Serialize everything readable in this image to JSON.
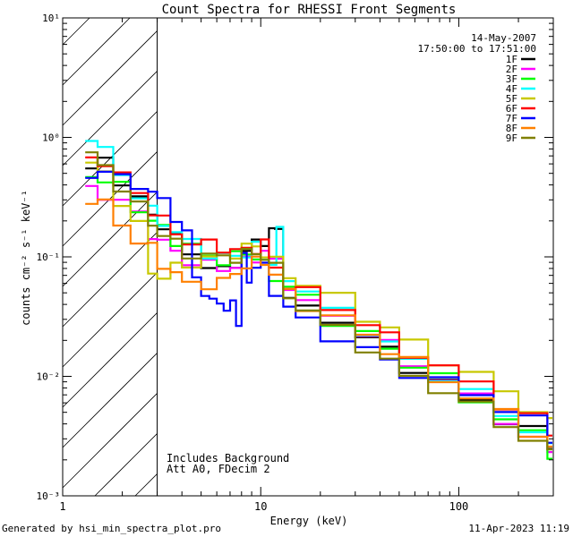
{
  "chart_data": {
    "type": "line",
    "title": "Count Spectra for RHESSI Front Segments",
    "xlabel": "Energy (keV)",
    "ylabel": "counts cm⁻² s⁻¹ keV⁻¹",
    "xscale": "log",
    "yscale": "log",
    "xlim": [
      1,
      300
    ],
    "ylim": [
      0.001,
      10
    ],
    "x_ticks": [
      {
        "value": 1,
        "label": "1"
      },
      {
        "value": 10,
        "label": "10"
      },
      {
        "value": 100,
        "label": "100"
      }
    ],
    "y_ticks": [
      {
        "value": 0.001,
        "label": "10⁻³"
      },
      {
        "value": 0.01,
        "label": "10⁻²"
      },
      {
        "value": 0.1,
        "label": "10⁻¹"
      },
      {
        "value": 1,
        "label": "10⁰"
      },
      {
        "value": 10,
        "label": "10¹"
      }
    ],
    "date": "14-May-2007",
    "time_range": "17:50:00 to 17:51:00",
    "excluded_region_max_kev": 3,
    "annotations": [
      "Includes Background",
      "Att A0, FDecim 2"
    ],
    "series": [
      {
        "name": "1F",
        "color": "#000000",
        "points": [
          [
            1.3,
            0.55
          ],
          [
            1.5,
            0.62
          ],
          [
            1.8,
            0.45
          ],
          [
            2.2,
            0.3
          ],
          [
            2.7,
            0.22
          ],
          [
            3.0,
            0.19
          ],
          [
            3.5,
            0.14
          ],
          [
            4.0,
            0.11
          ],
          [
            5.0,
            0.085
          ],
          [
            6.0,
            0.075
          ],
          [
            7.0,
            0.09
          ],
          [
            8.0,
            0.11
          ],
          [
            9.0,
            0.13
          ],
          [
            10.0,
            0.14
          ],
          [
            11.0,
            0.16
          ],
          [
            11.8,
            0.17
          ],
          [
            13.0,
            0.05
          ],
          [
            15.0,
            0.035
          ],
          [
            20.0,
            0.03
          ],
          [
            30.0,
            0.022
          ],
          [
            40.0,
            0.016
          ],
          [
            50.0,
            0.012
          ],
          [
            70.0,
            0.009
          ],
          [
            100.0,
            0.006
          ],
          [
            150.0,
            0.0045
          ],
          [
            200.0,
            0.0035
          ],
          [
            280.0,
            0.0025
          ]
        ]
      },
      {
        "name": "2F",
        "color": "#ff00ff",
        "points": [
          [
            1.3,
            0.35
          ],
          [
            1.5,
            0.33
          ],
          [
            1.8,
            0.3
          ],
          [
            2.2,
            0.22
          ],
          [
            2.7,
            0.16
          ],
          [
            3.0,
            0.13
          ],
          [
            3.5,
            0.11
          ],
          [
            4.0,
            0.095
          ],
          [
            5.0,
            0.085
          ],
          [
            6.0,
            0.08
          ],
          [
            7.0,
            0.085
          ],
          [
            8.0,
            0.09
          ],
          [
            9.0,
            0.1
          ],
          [
            10.0,
            0.11
          ],
          [
            11.0,
            0.09
          ],
          [
            13.0,
            0.06
          ],
          [
            15.0,
            0.04
          ],
          [
            20.0,
            0.032
          ],
          [
            30.0,
            0.024
          ],
          [
            40.0,
            0.018
          ],
          [
            50.0,
            0.013
          ],
          [
            70.0,
            0.0095
          ],
          [
            100.0,
            0.0065
          ],
          [
            150.0,
            0.0045
          ],
          [
            200.0,
            0.003
          ],
          [
            280.0,
            0.0022
          ]
        ]
      },
      {
        "name": "3F",
        "color": "#00ff00",
        "points": [
          [
            1.3,
            0.48
          ],
          [
            1.5,
            0.45
          ],
          [
            1.8,
            0.38
          ],
          [
            2.2,
            0.26
          ],
          [
            2.7,
            0.2
          ],
          [
            3.0,
            0.17
          ],
          [
            3.5,
            0.14
          ],
          [
            4.0,
            0.12
          ],
          [
            5.0,
            0.1
          ],
          [
            6.0,
            0.095
          ],
          [
            7.0,
            0.1
          ],
          [
            8.0,
            0.11
          ],
          [
            9.0,
            0.1
          ],
          [
            10.0,
            0.085
          ],
          [
            11.0,
            0.07
          ],
          [
            13.0,
            0.055
          ],
          [
            15.0,
            0.045
          ],
          [
            20.0,
            0.03
          ],
          [
            30.0,
            0.022
          ],
          [
            40.0,
            0.017
          ],
          [
            50.0,
            0.013
          ],
          [
            70.0,
            0.0095
          ],
          [
            100.0,
            0.0065
          ],
          [
            150.0,
            0.0045
          ],
          [
            200.0,
            0.0032
          ],
          [
            280.0,
            0.0023
          ]
        ]
      },
      {
        "name": "4F",
        "color": "#00ffff",
        "points": [
          [
            1.3,
            1.05
          ],
          [
            1.5,
            0.75
          ],
          [
            1.8,
            0.5
          ],
          [
            2.2,
            0.33
          ],
          [
            2.7,
            0.24
          ],
          [
            3.0,
            0.2
          ],
          [
            3.5,
            0.16
          ],
          [
            4.0,
            0.13
          ],
          [
            5.0,
            0.11
          ],
          [
            6.0,
            0.1
          ],
          [
            7.0,
            0.1
          ],
          [
            8.0,
            0.11
          ],
          [
            9.0,
            0.12
          ],
          [
            10.0,
            0.1
          ],
          [
            11.0,
            0.09
          ],
          [
            12.0,
            0.16
          ],
          [
            13.0,
            0.07
          ],
          [
            15.0,
            0.05
          ],
          [
            20.0,
            0.035
          ],
          [
            30.0,
            0.025
          ],
          [
            40.0,
            0.018
          ],
          [
            50.0,
            0.014
          ],
          [
            70.0,
            0.01
          ],
          [
            100.0,
            0.007
          ],
          [
            150.0,
            0.005
          ],
          [
            200.0,
            0.0035
          ],
          [
            280.0,
            0.0025
          ]
        ]
      },
      {
        "name": "5F",
        "color": "#c8c800",
        "points": [
          [
            1.3,
            0.58
          ],
          [
            1.5,
            0.5
          ],
          [
            1.8,
            0.3
          ],
          [
            2.2,
            0.18
          ],
          [
            2.7,
            0.075
          ],
          [
            3.0,
            0.07
          ],
          [
            3.5,
            0.08
          ],
          [
            4.0,
            0.09
          ],
          [
            5.0,
            0.1
          ],
          [
            6.0,
            0.1
          ],
          [
            7.0,
            0.11
          ],
          [
            8.0,
            0.12
          ],
          [
            9.0,
            0.12
          ],
          [
            10.0,
            0.11
          ],
          [
            11.0,
            0.09
          ],
          [
            13.0,
            0.07
          ],
          [
            15.0,
            0.06
          ],
          [
            20.0,
            0.045
          ],
          [
            30.0,
            0.032
          ],
          [
            40.0,
            0.025
          ],
          [
            50.0,
            0.019
          ],
          [
            70.0,
            0.014
          ],
          [
            100.0,
            0.01
          ],
          [
            150.0,
            0.0075
          ],
          [
            200.0,
            0.0055
          ],
          [
            280.0,
            0.004
          ]
        ]
      },
      {
        "name": "6F",
        "color": "#ff0000",
        "points": [
          [
            1.3,
            0.62
          ],
          [
            1.5,
            0.65
          ],
          [
            1.8,
            0.48
          ],
          [
            2.2,
            0.33
          ],
          [
            2.7,
            0.25
          ],
          [
            3.0,
            0.2
          ],
          [
            3.5,
            0.16
          ],
          [
            4.0,
            0.135
          ],
          [
            5.0,
            0.125
          ],
          [
            6.0,
            0.12
          ],
          [
            7.0,
            0.115
          ],
          [
            8.0,
            0.11
          ],
          [
            9.0,
            0.12
          ],
          [
            10.0,
            0.13
          ],
          [
            11.0,
            0.08
          ],
          [
            13.0,
            0.06
          ],
          [
            15.0,
            0.05
          ],
          [
            20.0,
            0.038
          ],
          [
            30.0,
            0.028
          ],
          [
            40.0,
            0.021
          ],
          [
            50.0,
            0.016
          ],
          [
            70.0,
            0.012
          ],
          [
            100.0,
            0.0085
          ],
          [
            150.0,
            0.006
          ],
          [
            200.0,
            0.0045
          ],
          [
            280.0,
            0.0032
          ]
        ]
      },
      {
        "name": "7F",
        "color": "#0000ff",
        "points": [
          [
            1.3,
            0.5
          ],
          [
            1.5,
            0.52
          ],
          [
            1.8,
            0.45
          ],
          [
            2.2,
            0.42
          ],
          [
            2.7,
            0.33
          ],
          [
            3.0,
            0.3
          ],
          [
            3.5,
            0.22
          ],
          [
            4.0,
            0.15
          ],
          [
            4.5,
            0.07
          ],
          [
            5.0,
            0.05
          ],
          [
            5.5,
            0.04
          ],
          [
            6.0,
            0.045
          ],
          [
            6.5,
            0.035
          ],
          [
            7.0,
            0.04
          ],
          [
            7.5,
            0.03
          ],
          [
            8.0,
            0.1
          ],
          [
            8.5,
            0.06
          ],
          [
            9.0,
            0.09
          ],
          [
            10.0,
            0.08
          ],
          [
            11.0,
            0.05
          ],
          [
            13.0,
            0.04
          ],
          [
            15.0,
            0.028
          ],
          [
            20.0,
            0.022
          ],
          [
            30.0,
            0.017
          ],
          [
            40.0,
            0.013
          ],
          [
            50.0,
            0.011
          ],
          [
            70.0,
            0.009
          ],
          [
            100.0,
            0.007
          ],
          [
            150.0,
            0.0055
          ],
          [
            200.0,
            0.0042
          ],
          [
            280.0,
            0.003
          ]
        ]
      },
      {
        "name": "8F",
        "color": "#ff8000",
        "points": [
          [
            1.3,
            0.3
          ],
          [
            1.5,
            0.27
          ],
          [
            1.8,
            0.2
          ],
          [
            2.2,
            0.13
          ],
          [
            2.7,
            0.12
          ],
          [
            3.0,
            0.09
          ],
          [
            3.5,
            0.07
          ],
          [
            4.0,
            0.06
          ],
          [
            5.0,
            0.06
          ],
          [
            6.0,
            0.06
          ],
          [
            7.0,
            0.075
          ],
          [
            8.0,
            0.085
          ],
          [
            9.0,
            0.09
          ],
          [
            10.0,
            0.095
          ],
          [
            11.0,
            0.07
          ],
          [
            13.0,
            0.05
          ],
          [
            15.0,
            0.04
          ],
          [
            20.0,
            0.03
          ],
          [
            30.0,
            0.022
          ],
          [
            40.0,
            0.017
          ],
          [
            50.0,
            0.013
          ],
          [
            70.0,
            0.0095
          ],
          [
            100.0,
            0.0068
          ],
          [
            150.0,
            0.0048
          ],
          [
            200.0,
            0.0035
          ],
          [
            280.0,
            0.0025
          ]
        ]
      },
      {
        "name": "9F",
        "color": "#808000",
        "points": [
          [
            1.3,
            0.68
          ],
          [
            1.5,
            0.6
          ],
          [
            1.8,
            0.38
          ],
          [
            2.2,
            0.26
          ],
          [
            2.7,
            0.2
          ],
          [
            3.0,
            0.15
          ],
          [
            3.5,
            0.13
          ],
          [
            4.0,
            0.11
          ],
          [
            5.0,
            0.1
          ],
          [
            6.0,
            0.1
          ],
          [
            7.0,
            0.1
          ],
          [
            8.0,
            0.105
          ],
          [
            9.0,
            0.11
          ],
          [
            10.0,
            0.1
          ],
          [
            11.0,
            0.08
          ],
          [
            13.0,
            0.05
          ],
          [
            15.0,
            0.035
          ],
          [
            20.0,
            0.025
          ],
          [
            30.0,
            0.018
          ],
          [
            40.0,
            0.013
          ],
          [
            50.0,
            0.01
          ],
          [
            70.0,
            0.008
          ],
          [
            100.0,
            0.0055
          ],
          [
            150.0,
            0.004
          ],
          [
            200.0,
            0.003
          ],
          [
            280.0,
            0.0022
          ]
        ]
      }
    ]
  },
  "footer": {
    "generator": "Generated by hsi_min_spectra_plot.pro",
    "timestamp": "11-Apr-2023 11:19"
  }
}
